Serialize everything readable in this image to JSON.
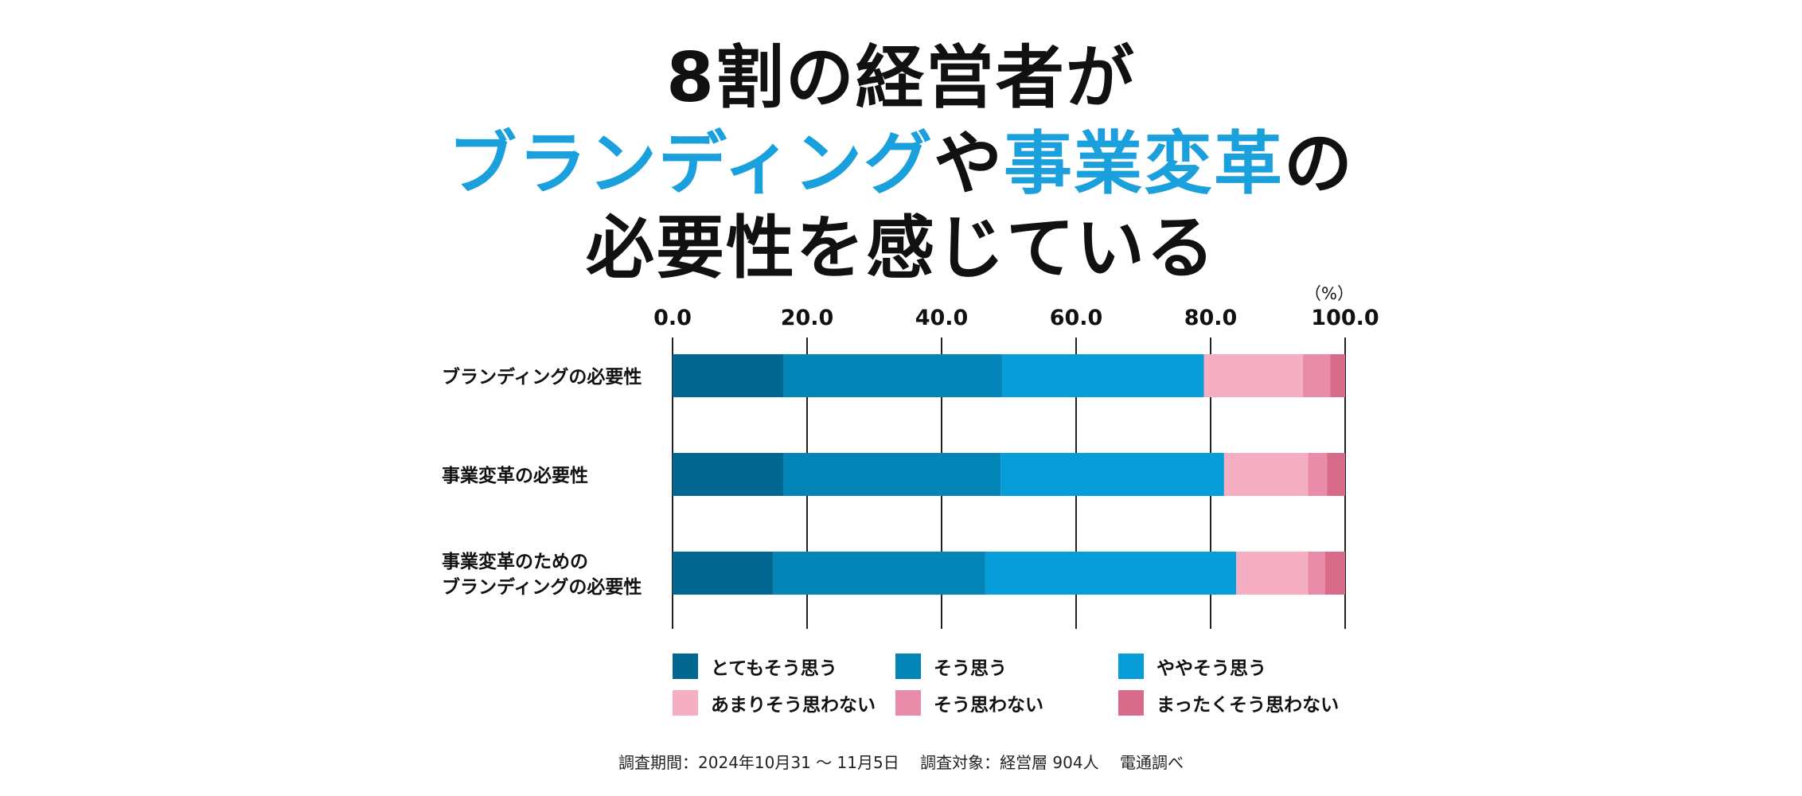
{
  "title": {
    "line1": "8割の経営者が",
    "line2_part1": "ブランディング",
    "line2_part2": "や",
    "line2_part3": "事業変革",
    "line2_part4": "の",
    "line3": "必要性を感じている"
  },
  "colors": {
    "accent_blue": "#1aa0dd",
    "series": [
      "#036891",
      "#0485b8",
      "#069dd8",
      "#f6aec3",
      "#e98ca9",
      "#d86a8a"
    ]
  },
  "chart_data": {
    "type": "bar",
    "orientation": "horizontal",
    "stacked": true,
    "unit": "（%）",
    "xlim": [
      0,
      100
    ],
    "xticks": [
      "0.0",
      "20.0",
      "40.0",
      "60.0",
      "80.0",
      "100.0"
    ],
    "grid": true,
    "legend_position": "bottom",
    "categories": [
      [
        "ブランディングの必要性"
      ],
      [
        "事業変革の必要性"
      ],
      [
        "事業変革のための",
        "ブランディングの必要性"
      ]
    ],
    "series": [
      {
        "name": "とてもそう思う",
        "values": [
          16.5,
          16.5,
          15.0
        ]
      },
      {
        "name": "そう思う",
        "values": [
          32.5,
          32.3,
          31.5
        ]
      },
      {
        "name": "ややそう思う",
        "values": [
          30.0,
          33.2,
          37.3
        ]
      },
      {
        "name": "あまりそう思わない",
        "values": [
          14.7,
          12.5,
          10.7
        ]
      },
      {
        "name": "そう思わない",
        "values": [
          4.1,
          2.8,
          2.5
        ]
      },
      {
        "name": "まったくそう思わない",
        "values": [
          2.2,
          2.7,
          3.0
        ]
      }
    ]
  },
  "footnote": "調査期間：2024年10月31 〜 11月5日　 調査対象：経営層 904人　 電通調べ"
}
